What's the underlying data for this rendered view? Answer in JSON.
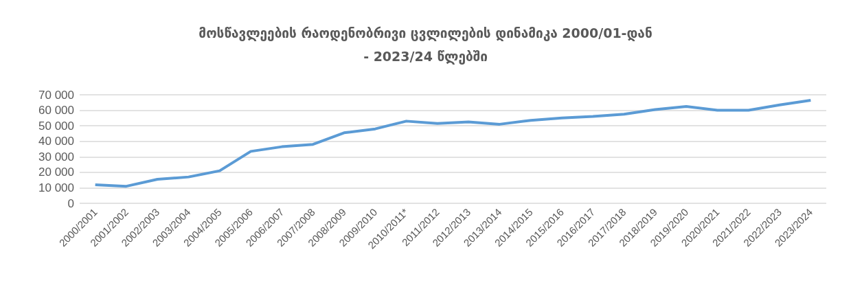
{
  "chart_data": {
    "type": "line",
    "title": "მოსწავლეების რაოდენობრივი ცვლილების დინამიკა 2000/01-დან\n- 2023/24 წლებში",
    "categories": [
      "2000/2001",
      "2001/2002",
      "2002/2003",
      "2003/2004",
      "2004/2005",
      "2005/2006",
      "2006/2007",
      "2007/2008",
      "2008/2009",
      "2009/2010",
      "2010/2011*",
      "2011/2012",
      "2012/2013",
      "2013/2014",
      "2014/2015",
      "2015/2016",
      "2016/2017",
      "2017/2018",
      "2018/2019",
      "2019/2020",
      "2020/2021",
      "2021/2022",
      "2022/2023",
      "2023/2024"
    ],
    "series": [
      {
        "color": "#5b9bd5",
        "values": [
          12000,
          11000,
          15500,
          17000,
          21000,
          33500,
          36500,
          38000,
          45500,
          48000,
          53000,
          51500,
          52500,
          51000,
          53500,
          55000,
          56000,
          57500,
          60500,
          62500,
          60000,
          60000,
          63500,
          66500
        ]
      }
    ],
    "ylim": [
      0,
      70000
    ],
    "yticks": [
      0,
      10000,
      20000,
      30000,
      40000,
      50000,
      60000,
      70000
    ],
    "grid": "y",
    "marker": "none",
    "line_style": "solid"
  }
}
